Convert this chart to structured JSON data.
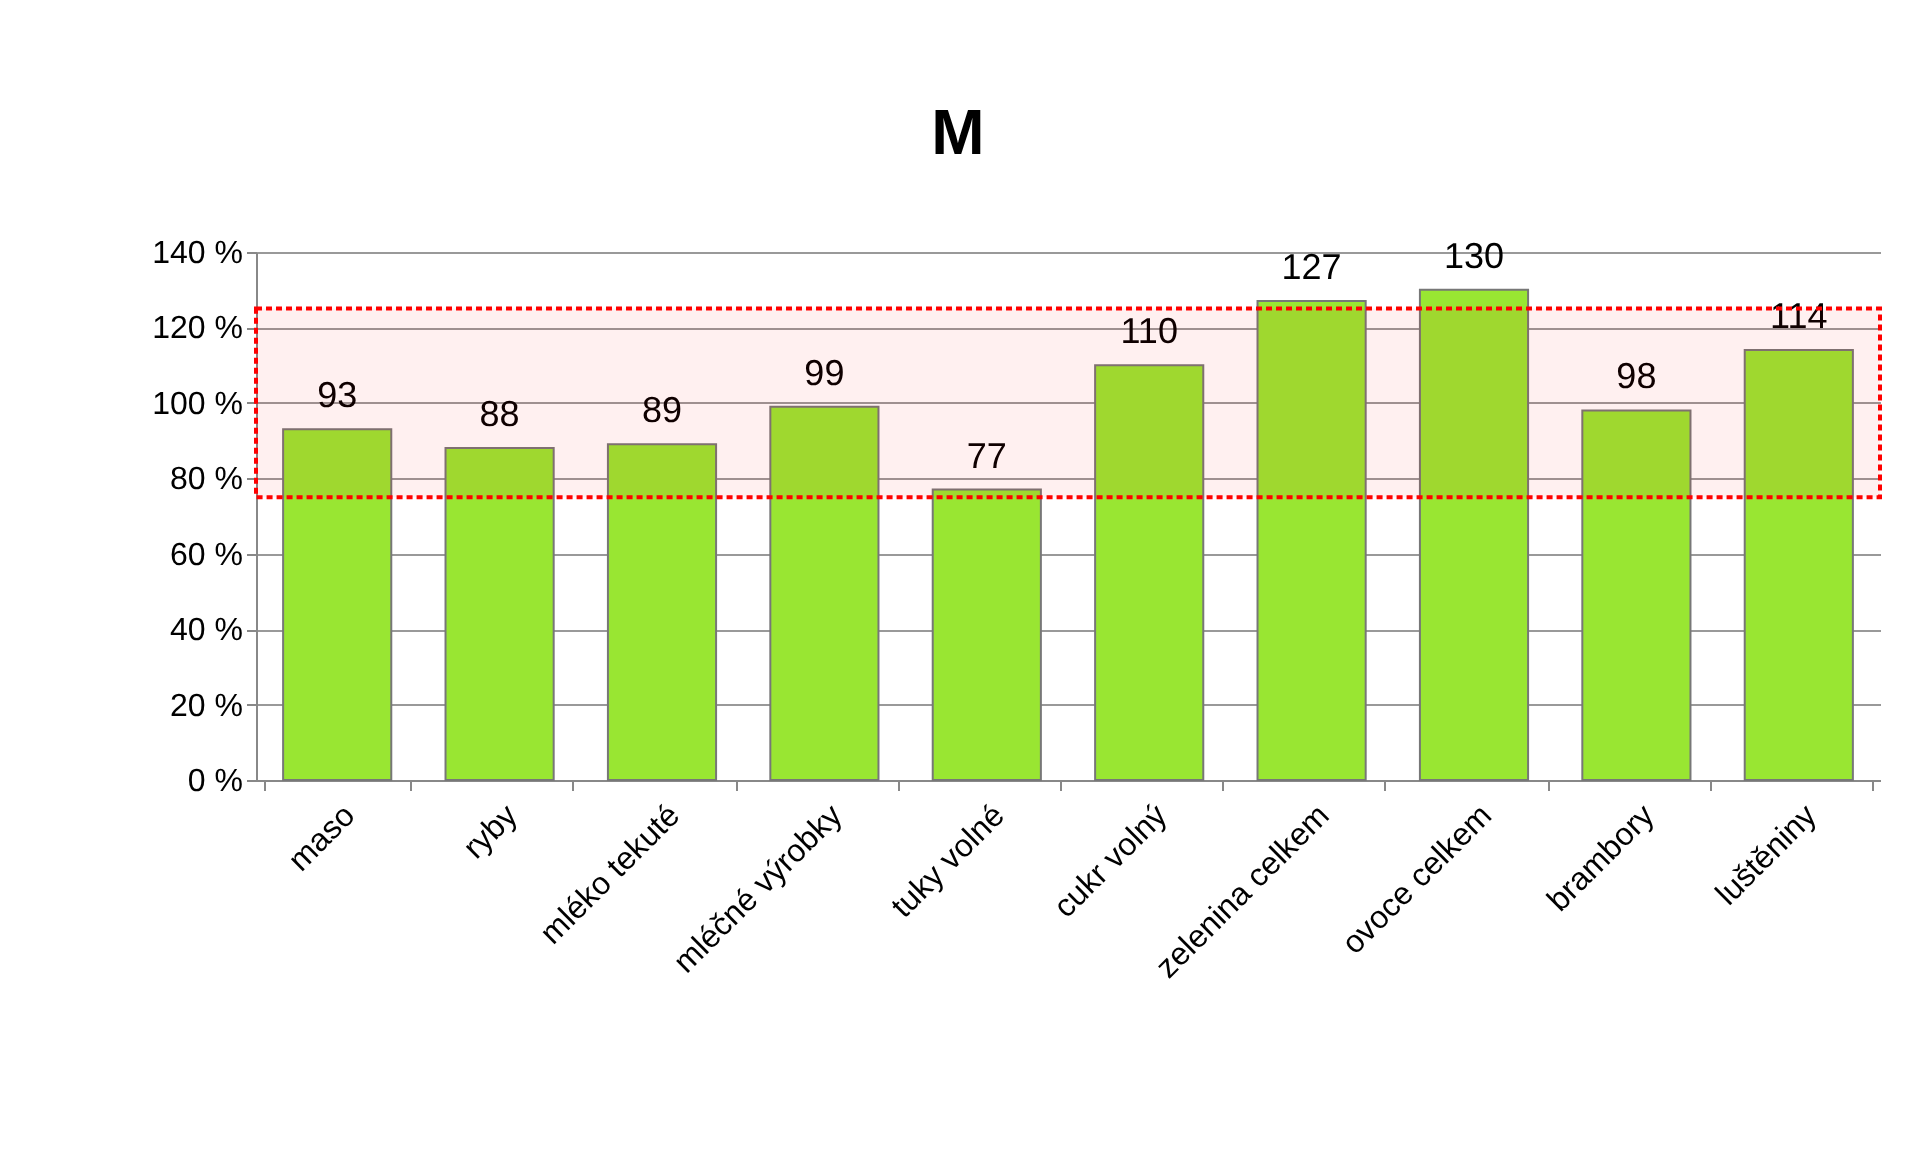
{
  "chart_data": {
    "type": "bar",
    "title": "M",
    "categories": [
      "maso",
      "ryby",
      "mléko tekuté",
      "mléčné výrobky",
      "tuky volné",
      "cukr volný",
      "zelenina celkem",
      "ovoce celkem",
      "brambory",
      "luštěniny"
    ],
    "values": [
      93,
      88,
      89,
      99,
      77,
      110,
      127,
      130,
      98,
      114
    ],
    "color": "#99e632",
    "ylim": [
      0,
      140
    ],
    "yticks": [
      {
        "value": 0,
        "label": "0 %"
      },
      {
        "value": 20,
        "label": "20 %"
      },
      {
        "value": 40,
        "label": "40 %"
      },
      {
        "value": 60,
        "label": "60 %"
      },
      {
        "value": 80,
        "label": "80 %"
      },
      {
        "value": 100,
        "label": "100 %"
      },
      {
        "value": 120,
        "label": "120 %"
      },
      {
        "value": 140,
        "label": "140 %"
      }
    ],
    "grid": "y",
    "data_labels": true,
    "bands": [
      {
        "axis": "y",
        "from": 75,
        "to": 125,
        "color": "#ff0000"
      }
    ]
  }
}
